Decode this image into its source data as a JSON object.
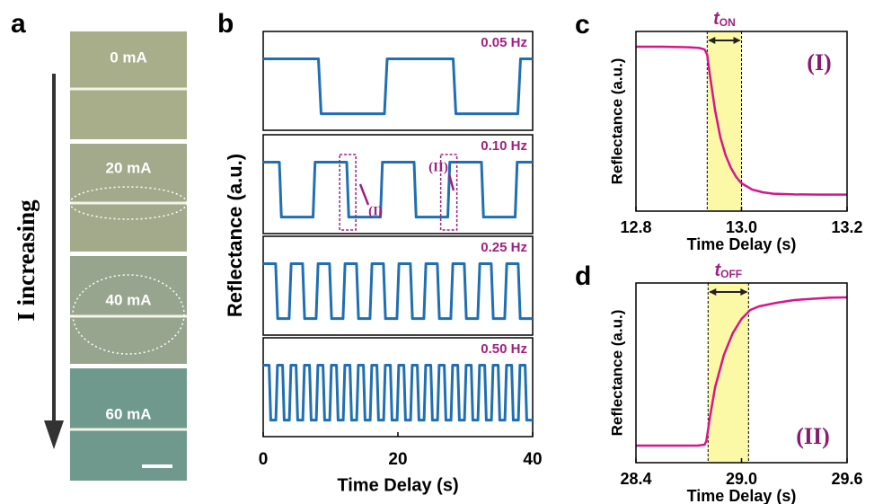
{
  "panel_a": {
    "panel_label": "a",
    "labels": [
      "0 mA",
      "20 mA",
      "40 mA",
      "60 mA"
    ],
    "arrow_label": "I increasing"
  },
  "chart_data": [
    {
      "type": "multi-line",
      "panel_label": "b",
      "xlabel": "Time Delay (s)",
      "ylabel": "Reflectance (a.u.)",
      "xlim": [
        0,
        40
      ],
      "xticks": [
        0,
        20,
        40
      ],
      "ylim": [
        -0.3,
        1.5
      ],
      "color": "#1f6fb2",
      "label_color": "#a0207f",
      "annotations": [
        "(I)",
        "(II)"
      ],
      "subplots": [
        {
          "label": "0.05 Hz",
          "x": [
            0,
            8.2,
            8.6,
            18,
            18.4,
            28.2,
            28.6,
            37.8,
            38.2,
            40
          ],
          "values": [
            1,
            1,
            0,
            0,
            1,
            1,
            0,
            0,
            1,
            1
          ]
        },
        {
          "label": "0.10 Hz",
          "x": [
            0,
            2.4,
            2.7,
            7.4,
            7.7,
            12.4,
            12.7,
            17.4,
            17.7,
            22.4,
            22.7,
            27.4,
            27.7,
            32.4,
            32.7,
            37.4,
            37.7,
            40
          ],
          "values": [
            1,
            1,
            0,
            0,
            1,
            1,
            0,
            0,
            1,
            1,
            0,
            0,
            1,
            1,
            0,
            0,
            1,
            1
          ]
        },
        {
          "label": "0.25 Hz",
          "x": [
            0,
            1.85,
            2.15,
            3.85,
            4.15,
            5.85,
            6.15,
            7.85,
            8.15,
            9.85,
            10.15,
            11.85,
            12.15,
            13.85,
            14.15,
            15.85,
            16.15,
            17.85,
            18.15,
            19.85,
            20.15,
            21.85,
            22.15,
            23.85,
            24.15,
            25.85,
            26.15,
            27.85,
            28.15,
            29.85,
            30.15,
            31.85,
            32.15,
            33.85,
            34.15,
            35.85,
            36.15,
            37.85,
            38.15,
            40
          ],
          "values": [
            1,
            1,
            0,
            0,
            1,
            1,
            0,
            0,
            1,
            1,
            0,
            0,
            1,
            1,
            0,
            0,
            1,
            1,
            0,
            0,
            1,
            1,
            0,
            0,
            1,
            1,
            0,
            0,
            1,
            1,
            0,
            0,
            1,
            1,
            0,
            0,
            1,
            1,
            0,
            0
          ]
        },
        {
          "label": "0.50 Hz",
          "x": [
            0,
            0.88,
            1.12,
            1.88,
            2.12,
            2.88,
            3.12,
            3.88,
            4.12,
            4.88,
            5.12,
            5.88,
            6.12,
            6.88,
            7.12,
            7.88,
            8.12,
            8.88,
            9.12,
            9.88,
            10.12,
            10.88,
            11.12,
            11.88,
            12.12,
            12.88,
            13.12,
            13.88,
            14.12,
            14.88,
            15.12,
            15.88,
            16.12,
            16.88,
            17.12,
            17.88,
            18.12,
            18.88,
            19.12,
            19.88,
            20.12,
            20.88,
            21.12,
            21.88,
            22.12,
            22.88,
            23.12,
            23.88,
            24.12,
            24.88,
            25.12,
            25.88,
            26.12,
            26.88,
            27.12,
            27.88,
            28.12,
            28.88,
            29.12,
            29.88,
            30.12,
            30.88,
            31.12,
            31.88,
            32.12,
            32.88,
            33.12,
            33.88,
            34.12,
            34.88,
            35.12,
            35.88,
            36.12,
            36.88,
            37.12,
            37.88,
            38.12,
            38.88,
            39.12,
            40
          ],
          "values": [
            1,
            1,
            0,
            0,
            1,
            1,
            0,
            0,
            1,
            1,
            0,
            0,
            1,
            1,
            0,
            0,
            1,
            1,
            0,
            0,
            1,
            1,
            0,
            0,
            1,
            1,
            0,
            0,
            1,
            1,
            0,
            0,
            1,
            1,
            0,
            0,
            1,
            1,
            0,
            0,
            1,
            1,
            0,
            0,
            1,
            1,
            0,
            0,
            1,
            1,
            0,
            0,
            1,
            1,
            0,
            0,
            1,
            1,
            0,
            0,
            1,
            1,
            0,
            0,
            1,
            1,
            0,
            0,
            1,
            1,
            0,
            0,
            1,
            1,
            0,
            0,
            1,
            1,
            0,
            0
          ]
        }
      ]
    },
    {
      "type": "line",
      "panel_label": "c",
      "xlabel": "Time Delay (s)",
      "ylabel": "Reflectance (a.u.)",
      "xlim": [
        12.8,
        13.2
      ],
      "xticks": [
        12.8,
        {
          "value": 13.0,
          "label": "13.0"
        },
        13.2
      ],
      "ylim": [
        0,
        1
      ],
      "color": "#d6168c",
      "highlight": [
        12.935,
        13.0
      ],
      "interval_label": {
        "t": "t",
        "sub": "ON"
      },
      "annotation": "(I)",
      "x": [
        12.8,
        12.85,
        12.9,
        12.92,
        12.93,
        12.935,
        12.94,
        12.95,
        12.96,
        12.97,
        12.98,
        12.99,
        13.0,
        13.02,
        13.04,
        13.06,
        13.1,
        13.15,
        13.2
      ],
      "values": [
        0.915,
        0.915,
        0.912,
        0.908,
        0.9,
        0.87,
        0.76,
        0.56,
        0.41,
        0.31,
        0.24,
        0.19,
        0.155,
        0.12,
        0.105,
        0.097,
        0.093,
        0.092,
        0.092
      ]
    },
    {
      "type": "line",
      "panel_label": "d",
      "xlabel": "Time Delay (s)",
      "ylabel": "Reflectance (a.u.)",
      "xlim": [
        28.4,
        29.6
      ],
      "xticks": [
        28.4,
        {
          "value": 29.0,
          "label": "29.0"
        },
        29.6
      ],
      "ylim": [
        0,
        1
      ],
      "color": "#d6168c",
      "highlight": [
        28.81,
        29.04
      ],
      "interval_label": {
        "t": "t",
        "sub": "OFF"
      },
      "annotation": "(II)",
      "x": [
        28.4,
        28.6,
        28.75,
        28.79,
        28.8,
        28.82,
        28.85,
        28.9,
        28.95,
        29.0,
        29.05,
        29.1,
        29.2,
        29.3,
        29.4,
        29.5,
        29.6
      ],
      "values": [
        0.095,
        0.095,
        0.095,
        0.1,
        0.12,
        0.25,
        0.42,
        0.6,
        0.72,
        0.8,
        0.85,
        0.87,
        0.89,
        0.905,
        0.912,
        0.918,
        0.92
      ]
    }
  ]
}
